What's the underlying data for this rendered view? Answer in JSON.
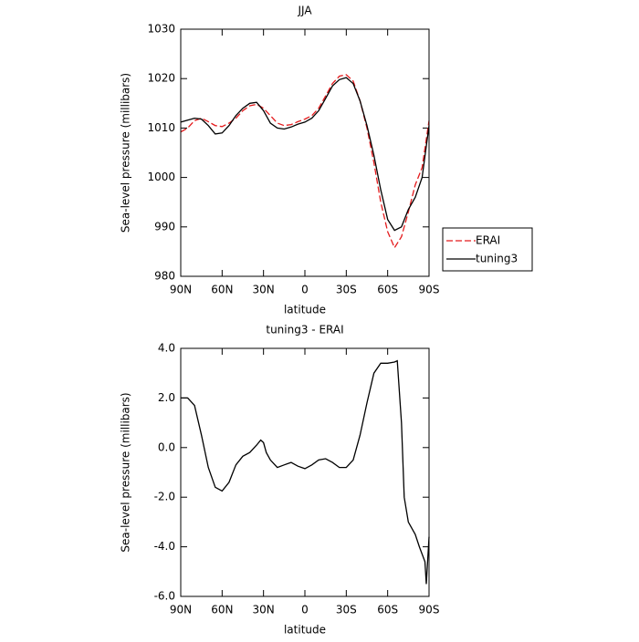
{
  "chart_data": [
    {
      "type": "line",
      "title": "JJA",
      "xlabel": "latitude",
      "ylabel": "Sea-level pressure (millibars)",
      "x": [
        90,
        85,
        80,
        75,
        70,
        65,
        60,
        55,
        50,
        45,
        40,
        35,
        30,
        25,
        20,
        15,
        10,
        5,
        0,
        -5,
        -10,
        -15,
        -20,
        -25,
        -30,
        -35,
        -40,
        -45,
        -50,
        -55,
        -60,
        -65,
        -70,
        -75,
        -80,
        -85,
        -90
      ],
      "series": [
        {
          "name": "ERAI",
          "color": "#e41a1c",
          "dashed": true,
          "values": [
            1009.2,
            1010,
            1011.5,
            1012,
            1011.3,
            1010.5,
            1010.3,
            1011,
            1012,
            1013.5,
            1014.5,
            1014.8,
            1014,
            1012.5,
            1011,
            1010.5,
            1010.7,
            1011.3,
            1011.8,
            1012.5,
            1014,
            1016.5,
            1019,
            1020.5,
            1020.8,
            1019.5,
            1015.5,
            1010,
            1003,
            995,
            989,
            985.8,
            988,
            993,
            998.5,
            1002,
            1011.5
          ]
        },
        {
          "name": "tuning3",
          "color": "#000000",
          "dashed": false,
          "values": [
            1011.2,
            1011.6,
            1012,
            1011.8,
            1010.5,
            1008.8,
            1009,
            1010.5,
            1012.5,
            1014,
            1015,
            1015.2,
            1013.5,
            1011,
            1010,
            1009.8,
            1010.2,
            1010.8,
            1011.2,
            1012,
            1013.5,
            1016,
            1018.5,
            1019.8,
            1020.2,
            1019,
            1015.5,
            1010.5,
            1004.5,
            997.5,
            991.5,
            989.3,
            990,
            993.5,
            996,
            1000,
            1010.5
          ]
        }
      ],
      "xlim": [
        90,
        -90
      ],
      "xticks": [
        {
          "value": 90,
          "label": "90N"
        },
        {
          "value": 60,
          "label": "60N"
        },
        {
          "value": 30,
          "label": "30N"
        },
        0,
        {
          "value": -30,
          "label": "30S"
        },
        {
          "value": -60,
          "label": "60S"
        },
        {
          "value": -90,
          "label": "90S"
        }
      ],
      "ylim": [
        980,
        1030
      ],
      "yticks": [
        980,
        990,
        1000,
        1010,
        1020,
        1030
      ],
      "legend": "right"
    },
    {
      "type": "line",
      "title": "tuning3 - ERAI",
      "xlabel": "latitude",
      "ylabel": "Sea-level pressure (millibars)",
      "x": [
        90,
        85,
        80,
        75,
        70,
        65,
        60,
        55,
        50,
        45,
        40,
        35,
        32,
        30,
        28,
        25,
        20,
        15,
        10,
        5,
        0,
        -5,
        -10,
        -15,
        -20,
        -25,
        -30,
        -35,
        -40,
        -45,
        -50,
        -55,
        -60,
        -65,
        -67,
        -70,
        -72,
        -75,
        -80,
        -83,
        -87,
        -88,
        -90
      ],
      "series": [
        {
          "name": "tuning3 - ERAI",
          "color": "#000000",
          "dashed": false,
          "values": [
            2.0,
            2.0,
            1.7,
            0.5,
            -0.8,
            -1.6,
            -1.75,
            -1.4,
            -0.7,
            -0.35,
            -0.2,
            0.1,
            0.3,
            0.2,
            -0.2,
            -0.5,
            -0.8,
            -0.7,
            -0.6,
            -0.75,
            -0.85,
            -0.7,
            -0.5,
            -0.45,
            -0.6,
            -0.8,
            -0.8,
            -0.5,
            0.5,
            1.8,
            3.0,
            3.4,
            3.4,
            3.45,
            3.5,
            1.0,
            -2.0,
            -3.0,
            -3.5,
            -4.0,
            -4.6,
            -5.5,
            -3.6
          ]
        }
      ],
      "xlim": [
        90,
        -90
      ],
      "xticks": [
        {
          "value": 90,
          "label": "90N"
        },
        {
          "value": 60,
          "label": "60N"
        },
        {
          "value": 30,
          "label": "30N"
        },
        0,
        {
          "value": -30,
          "label": "30S"
        },
        {
          "value": -60,
          "label": "60S"
        },
        {
          "value": -90,
          "label": "90S"
        }
      ],
      "ylim": [
        -6,
        4
      ],
      "yticks": [
        {
          "value": -6,
          "label": "-6.0"
        },
        {
          "value": -4,
          "label": "-4.0"
        },
        {
          "value": -2,
          "label": "-2.0"
        },
        {
          "value": 0,
          "label": "0.0"
        },
        {
          "value": 2,
          "label": "2.0"
        },
        {
          "value": 4,
          "label": "4.0"
        }
      ]
    }
  ]
}
